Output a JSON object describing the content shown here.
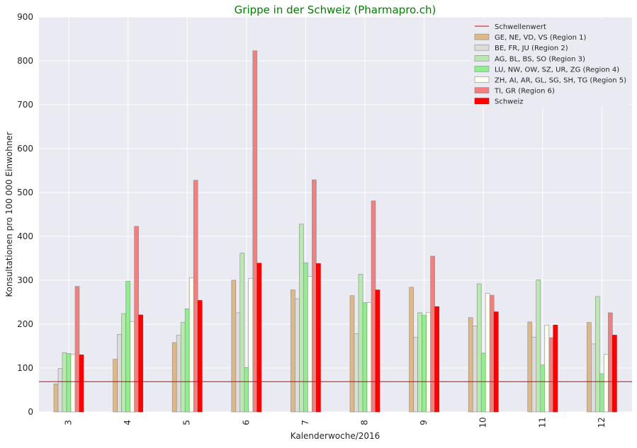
{
  "chart_data": {
    "type": "bar",
    "title": "Grippe in der Schweiz (Pharmapro.ch)",
    "xlabel": "Kalenderwoche/2016",
    "ylabel": "Konsultationen pro 100 000 Einwohner",
    "ylim": [
      0,
      900
    ],
    "yticks": [
      0,
      100,
      200,
      300,
      400,
      500,
      600,
      700,
      800,
      900
    ],
    "grid": true,
    "legend_position": "top-right",
    "categories": [
      "3",
      "4",
      "5",
      "6",
      "7",
      "8",
      "9",
      "10",
      "11",
      "12"
    ],
    "threshold": {
      "name": "Schwellenwert",
      "value": 69,
      "color": "#dd0000"
    },
    "series": [
      {
        "name": "GE, NE, VD, VS (Region 1)",
        "color": "#deb887",
        "values": [
          64,
          120,
          158,
          300,
          278,
          265,
          284,
          215,
          205,
          204
        ]
      },
      {
        "name": "BE, FR, JU (Region 2)",
        "color": "#dcdcdc",
        "values": [
          99,
          177,
          175,
          226,
          258,
          178,
          170,
          196,
          170,
          155
        ]
      },
      {
        "name": "AG, BL, BS, SO (Region 3)",
        "color": "#b8eab0",
        "values": [
          135,
          224,
          204,
          362,
          428,
          314,
          226,
          292,
          301,
          263
        ]
      },
      {
        "name": "LU, NW, OW, SZ, UR, ZG (Region 4)",
        "color": "#90ee90",
        "values": [
          133,
          298,
          235,
          101,
          340,
          249,
          220,
          134,
          107,
          87
        ]
      },
      {
        "name": "ZH, AI, AR, GL, SG, SH, TG (Region 5)",
        "color": "#fffff0",
        "values": [
          131,
          206,
          306,
          304,
          309,
          249,
          227,
          270,
          198,
          131
        ]
      },
      {
        "name": "TI, GR (Region 6)",
        "color": "#f08080",
        "values": [
          286,
          423,
          528,
          823,
          529,
          481,
          355,
          266,
          169,
          226
        ]
      },
      {
        "name": "Schweiz",
        "color": "#ff0000",
        "values": [
          130,
          221,
          254,
          339,
          338,
          278,
          240,
          228,
          198,
          175
        ]
      }
    ]
  }
}
